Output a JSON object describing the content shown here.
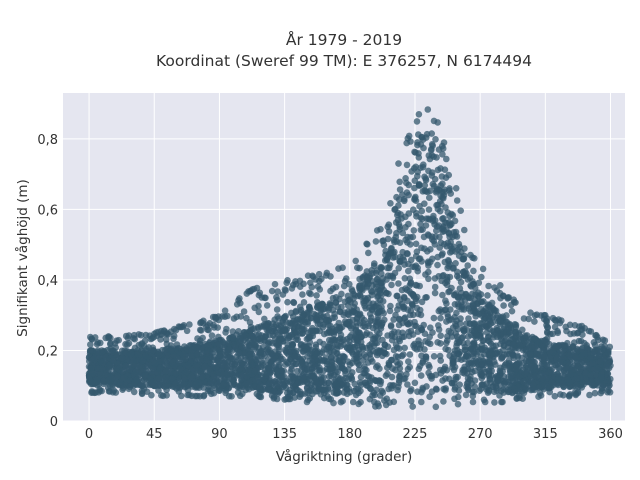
{
  "chart_data": {
    "type": "scatter",
    "title_line1": "År 1979 - 2019",
    "title_line2": "Koordinat (Sweref 99 TM): E 376257, N 6174494",
    "xlabel": "Vågriktning (grader)",
    "ylabel": "Signifikant våghöjd (m)",
    "xlim": [
      -18,
      370
    ],
    "ylim": [
      0,
      0.93
    ],
    "x_ticks": [
      0,
      45,
      90,
      135,
      180,
      225,
      270,
      315,
      360
    ],
    "x_tick_labels": [
      "0",
      "45",
      "90",
      "135",
      "180",
      "225",
      "270",
      "315",
      "360"
    ],
    "y_ticks": [
      0,
      0.2,
      0.4,
      0.6,
      0.8
    ],
    "y_tick_labels": [
      "0",
      "0,2",
      "0,4",
      "0,6",
      "0,8"
    ],
    "grid": true,
    "background": "#e5e6f0",
    "marker_color": "#34586e",
    "envelope": {
      "x": [
        0,
        20,
        45,
        90,
        110,
        135,
        160,
        180,
        200,
        215,
        225,
        232,
        240,
        250,
        260,
        270,
        285,
        300,
        315,
        340,
        360
      ],
      "upper": [
        0.24,
        0.24,
        0.25,
        0.3,
        0.37,
        0.4,
        0.42,
        0.44,
        0.55,
        0.75,
        0.86,
        0.89,
        0.86,
        0.72,
        0.55,
        0.45,
        0.38,
        0.32,
        0.3,
        0.27,
        0.22
      ],
      "lower": [
        0.08,
        0.08,
        0.07,
        0.07,
        0.07,
        0.06,
        0.05,
        0.05,
        0.04,
        0.04,
        0.04,
        0.04,
        0.04,
        0.04,
        0.05,
        0.05,
        0.05,
        0.06,
        0.07,
        0.07,
        0.08
      ],
      "core_upper": [
        0.2,
        0.2,
        0.2,
        0.23,
        0.26,
        0.3,
        0.34,
        0.37,
        0.47,
        0.66,
        0.8,
        0.84,
        0.8,
        0.64,
        0.46,
        0.35,
        0.3,
        0.26,
        0.22,
        0.21,
        0.2
      ],
      "core_lower": [
        0.1,
        0.1,
        0.1,
        0.09,
        0.09,
        0.08,
        0.07,
        0.07,
        0.07,
        0.08,
        0.08,
        0.08,
        0.08,
        0.08,
        0.08,
        0.08,
        0.08,
        0.08,
        0.09,
        0.1,
        0.1
      ]
    }
  }
}
